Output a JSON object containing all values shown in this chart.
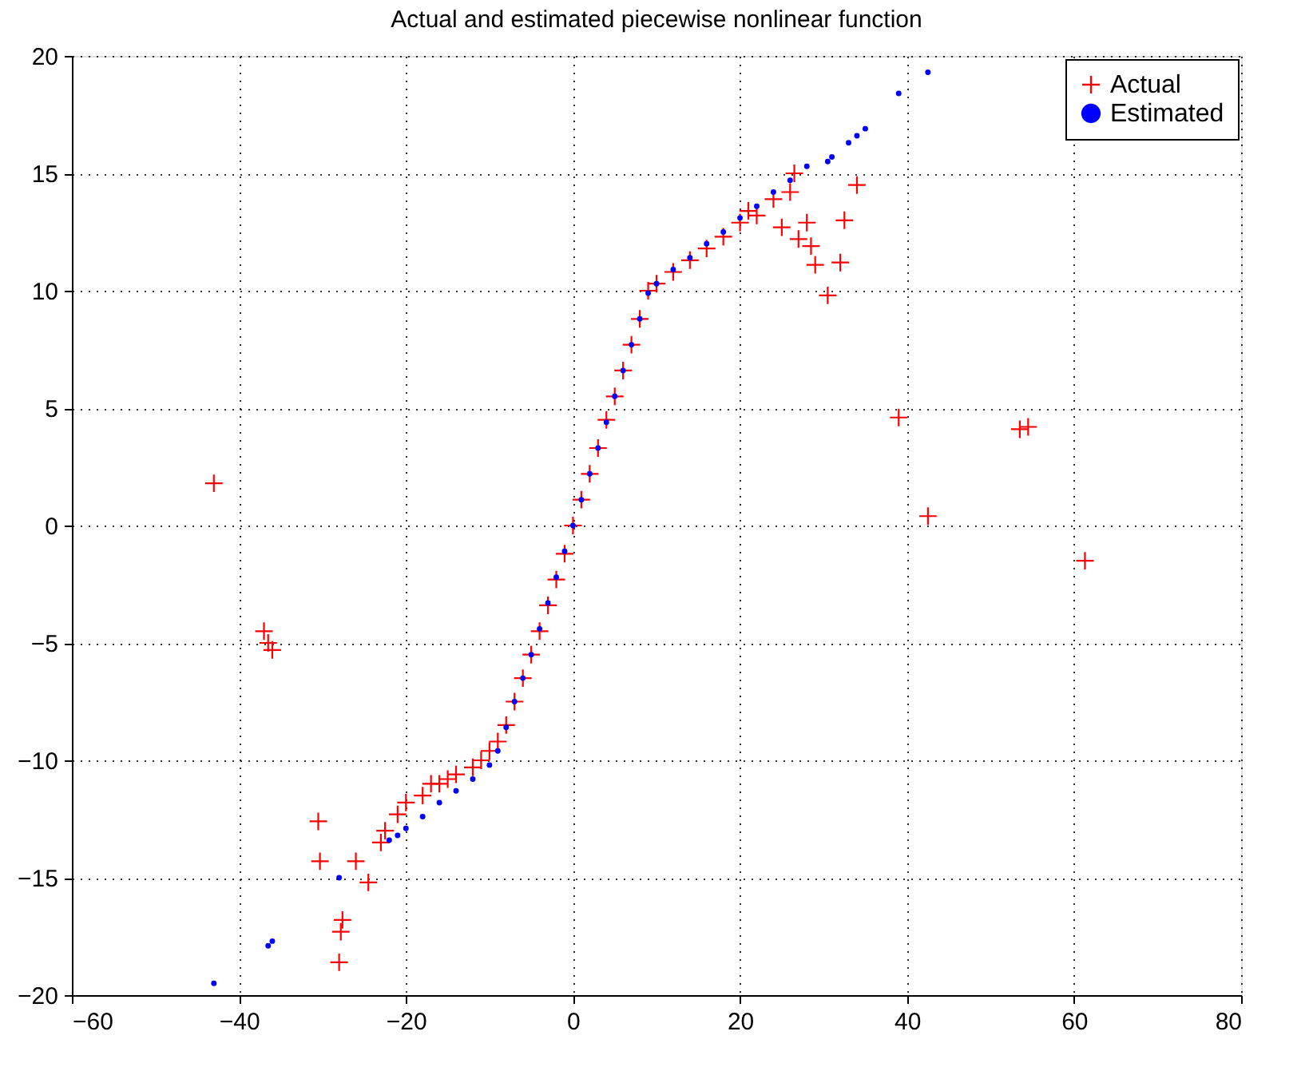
{
  "chart_data": {
    "type": "scatter",
    "title": "Actual and estimated piecewise nonlinear function",
    "xlim": [
      -60,
      80
    ],
    "xticks": [
      -60,
      -40,
      -20,
      0,
      20,
      40,
      60,
      80
    ],
    "ylim": [
      -20,
      20
    ],
    "yticks": [
      -20,
      -15,
      -10,
      -5,
      0,
      5,
      10,
      15,
      20
    ],
    "grid": true,
    "legend": "top right",
    "series": [
      {
        "name": "Actual",
        "color": "#ff0000",
        "marker": "cross",
        "x": [
          -43,
          -37,
          -36.5,
          -36,
          -30.5,
          -30.3,
          -27.6,
          -27.8,
          -28,
          -26,
          -24.5,
          -23,
          -22.5,
          -21,
          -20,
          -18,
          -17,
          -16,
          -15,
          -14,
          -12,
          -11,
          -10,
          -9,
          -8,
          -7,
          -6,
          -5,
          -4,
          -3,
          -2,
          -1,
          0,
          1,
          2,
          3,
          4,
          5,
          6,
          7,
          8,
          9,
          10,
          12,
          14,
          16,
          18,
          20,
          21,
          22,
          24,
          25,
          26,
          26.5,
          27,
          28,
          28.5,
          29,
          30.5,
          32,
          32.5,
          34,
          39,
          42.5,
          53.5,
          54.5,
          61.3
        ],
        "values": [
          1.8,
          -4.5,
          -5,
          -5.3,
          -12.6,
          -14.3,
          -16.8,
          -17.3,
          -18.6,
          -14.3,
          -15.2,
          -13.5,
          -13,
          -12.3,
          -11.8,
          -11.5,
          -11,
          -11,
          -10.8,
          -10.6,
          -10.3,
          -10,
          -9.6,
          -9.2,
          -8.5,
          -7.5,
          -6.5,
          -5.5,
          -4.5,
          -3.4,
          -2.3,
          -1.2,
          0,
          1.1,
          2.2,
          3.3,
          4.5,
          5.5,
          6.6,
          7.7,
          8.8,
          10,
          10.3,
          10.8,
          11.3,
          11.8,
          12.3,
          12.9,
          13.4,
          13.2,
          13.9,
          12.7,
          14.2,
          15,
          12.2,
          12.9,
          11.9,
          11.1,
          9.8,
          11.2,
          13,
          14.5,
          4.6,
          0.4,
          4.1,
          4.2,
          -1.5
        ]
      },
      {
        "name": "Estimated",
        "color": "#0000ff",
        "marker": "circle",
        "x": [
          -43,
          -36.5,
          -36,
          -28,
          -22,
          -21,
          -20,
          -18,
          -16,
          -14,
          -12,
          -10,
          -9,
          -8,
          -7,
          -6,
          -5,
          -4,
          -3,
          -2,
          -1,
          0,
          1,
          2,
          3,
          4,
          5,
          6,
          7,
          8,
          9,
          10,
          12,
          14,
          16,
          18,
          20,
          22,
          24,
          26,
          28,
          30.5,
          31,
          33,
          34,
          35,
          39,
          42.5
        ],
        "values": [
          -19.5,
          -17.9,
          -17.7,
          -15,
          -13.4,
          -13.2,
          -12.9,
          -12.4,
          -11.8,
          -11.3,
          -10.8,
          -10.2,
          -9.6,
          -8.6,
          -7.5,
          -6.5,
          -5.5,
          -4.4,
          -3.3,
          -2.2,
          -1.1,
          0,
          1.1,
          2.2,
          3.3,
          4.4,
          5.5,
          6.6,
          7.7,
          8.8,
          9.9,
          10.3,
          10.9,
          11.4,
          12,
          12.5,
          13.1,
          13.6,
          14.2,
          14.7,
          15.3,
          15.5,
          15.7,
          16.3,
          16.6,
          16.9,
          18.4,
          19.3
        ]
      }
    ]
  }
}
